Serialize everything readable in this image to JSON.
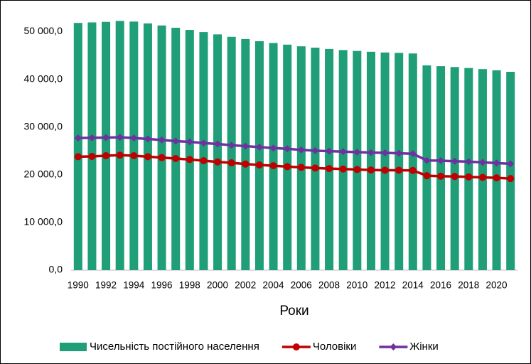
{
  "chart_data": {
    "type": "bar_line",
    "x_label": "Роки",
    "categories": [
      "1990",
      null,
      "1992",
      null,
      "1994",
      null,
      "1996",
      null,
      "1998",
      null,
      "2000",
      null,
      "2002",
      null,
      "2004",
      null,
      "2006",
      null,
      "2008",
      null,
      "2010",
      null,
      "2012",
      null,
      "2014",
      null,
      "2016",
      null,
      "2018",
      null,
      "2020",
      null
    ],
    "series": [
      {
        "name": "Чисельність постійного населення",
        "type": "bar",
        "color": "#1f9e78",
        "values": [
          51838,
          51944,
          52057,
          52244,
          52114,
          51728,
          51297,
          50818,
          50370,
          49918,
          49430,
          48923,
          48457,
          48004,
          47622,
          47281,
          46930,
          46646,
          46373,
          46144,
          45963,
          45783,
          45633,
          45553,
          45426,
          42929,
          42760,
          42584,
          42386,
          42153,
          41902,
          41588
        ]
      },
      {
        "name": "Чоловіки",
        "type": "line",
        "marker": "circle",
        "color": "#c00000",
        "values": [
          23800,
          23850,
          24000,
          24100,
          24000,
          23800,
          23600,
          23400,
          23200,
          22950,
          22700,
          22500,
          22250,
          22050,
          21900,
          21700,
          21550,
          21400,
          21300,
          21200,
          21100,
          21000,
          20950,
          20950,
          20900,
          19800,
          19700,
          19650,
          19550,
          19450,
          19350,
          19200
        ]
      },
      {
        "name": "Жінки",
        "type": "line",
        "marker": "diamond",
        "color": "#7030a0",
        "values": [
          27700,
          27750,
          27800,
          27850,
          27700,
          27500,
          27300,
          27050,
          26900,
          26650,
          26450,
          26200,
          26000,
          25800,
          25600,
          25450,
          25200,
          25050,
          24950,
          24850,
          24750,
          24650,
          24600,
          24500,
          24400,
          23000,
          22950,
          22850,
          22750,
          22600,
          22450,
          22300
        ]
      }
    ],
    "ylim": [
      0,
      55000
    ],
    "yticks": [
      {
        "value": 0,
        "label": "0,0"
      },
      {
        "value": 10000,
        "label": "10 000,0"
      },
      {
        "value": 20000,
        "label": "20 000,0"
      },
      {
        "value": 30000,
        "label": "30 000,0"
      },
      {
        "value": 40000,
        "label": "40 000,0"
      },
      {
        "value": 50000,
        "label": "50 000,0"
      }
    ],
    "legend": "bottom"
  }
}
